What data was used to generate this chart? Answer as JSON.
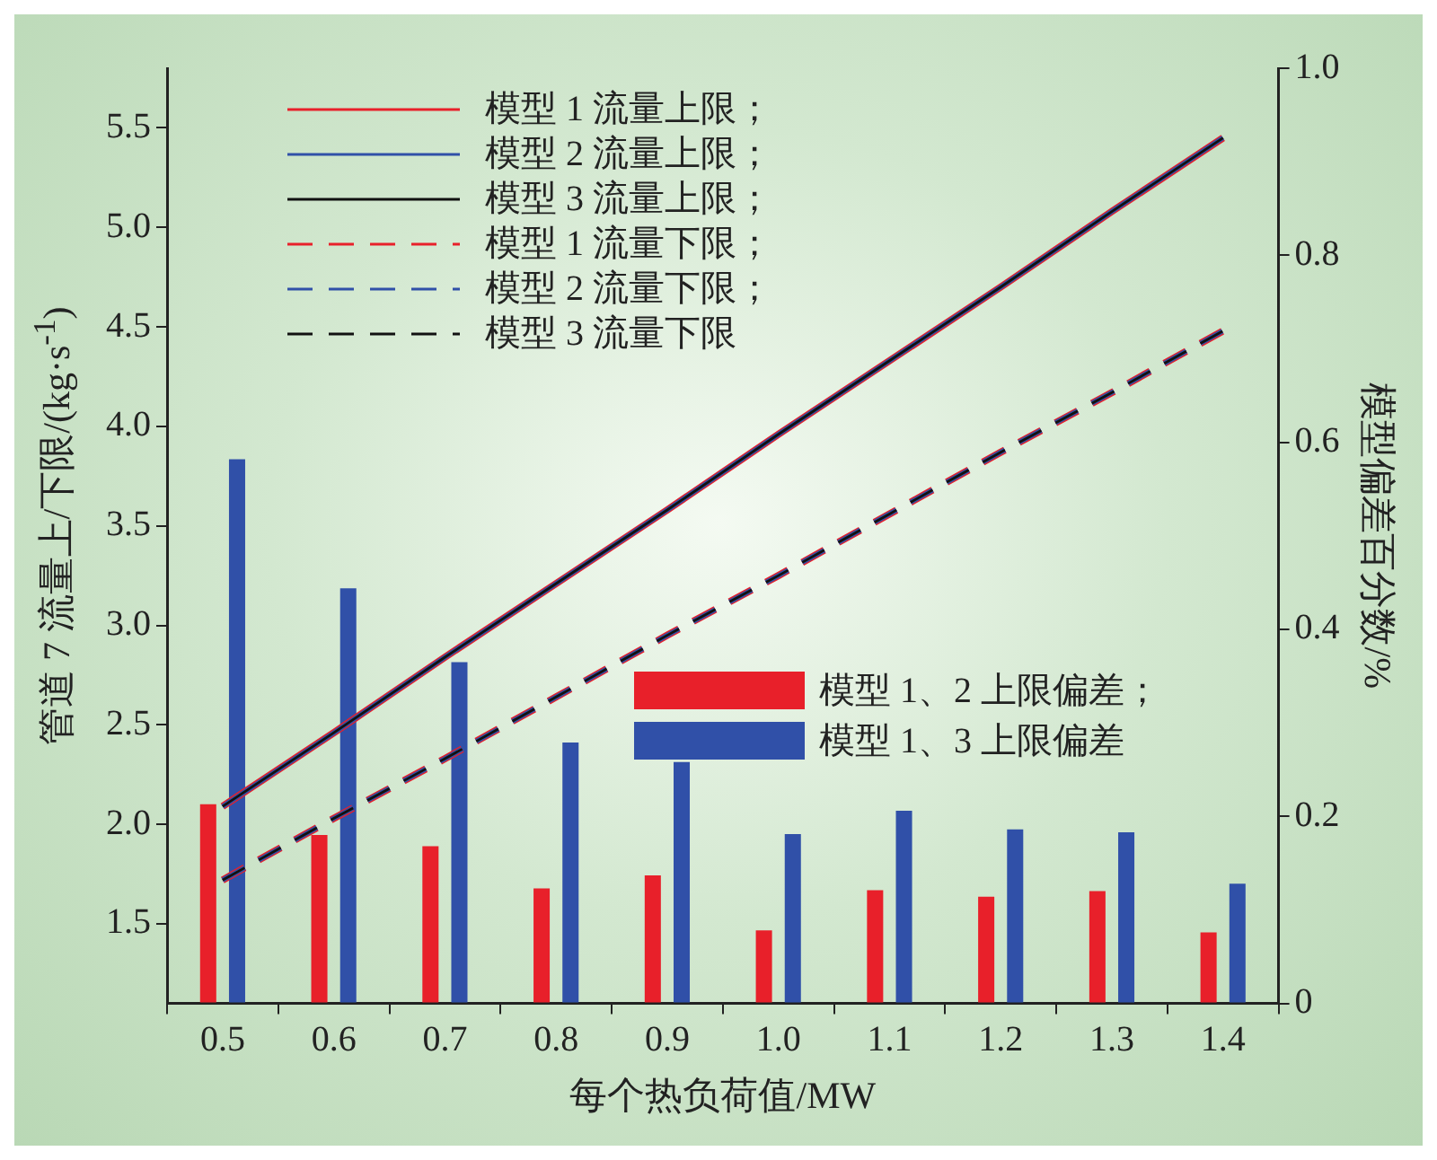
{
  "chart_data": {
    "type": "bar",
    "xlabel": "每个热负荷值/MW",
    "ylabel": "管道 7 流量上/下限/(kg·s$^{-1}$)",
    "y2label": "模型偏差百分数/%",
    "categories": [
      "0.5",
      "0.6",
      "0.7",
      "0.8",
      "0.9",
      "1.0",
      "1.1",
      "1.2",
      "1.3",
      "1.4"
    ],
    "series": [
      {
        "name": "模型 1 流量上限；",
        "type": "line",
        "color": "#e8202a",
        "line_style": "solid",
        "values": [
          2.09,
          2.46,
          2.84,
          3.21,
          3.58,
          3.96,
          4.33,
          4.7,
          5.08,
          5.45
        ]
      },
      {
        "name": "模型 2 流量上限；",
        "type": "line",
        "color": "#3050a8",
        "line_style": "solid",
        "values": [
          2.09,
          2.46,
          2.84,
          3.21,
          3.58,
          3.96,
          4.33,
          4.7,
          5.08,
          5.45
        ]
      },
      {
        "name": "模型 3 流量上限；",
        "type": "line",
        "color": "#111111",
        "line_style": "solid",
        "values": [
          2.09,
          2.46,
          2.84,
          3.21,
          3.58,
          3.96,
          4.33,
          4.7,
          5.08,
          5.45
        ]
      },
      {
        "name": "模型 1 流量下限；",
        "type": "line",
        "color": "#e8202a",
        "line_style": "dashed",
        "values": [
          1.72,
          2.03,
          2.33,
          2.64,
          2.95,
          3.25,
          3.56,
          3.87,
          4.17,
          4.48
        ]
      },
      {
        "name": "模型 2 流量下限；",
        "type": "line",
        "color": "#3050a8",
        "line_style": "dashed",
        "values": [
          1.72,
          2.03,
          2.33,
          2.64,
          2.95,
          3.25,
          3.56,
          3.87,
          4.17,
          4.48
        ]
      },
      {
        "name": "模型 3 流量下限",
        "type": "line",
        "color": "#111111",
        "line_style": "dashed",
        "values": [
          1.72,
          2.03,
          2.33,
          2.64,
          2.95,
          3.25,
          3.56,
          3.87,
          4.17,
          4.48
        ]
      },
      {
        "name": "模型 1、2 上限偏差；",
        "axis": "y2",
        "color": "#e8202a",
        "values": [
          0.213,
          0.18,
          0.168,
          0.123,
          0.137,
          0.078,
          0.121,
          0.114,
          0.12,
          0.076
        ]
      },
      {
        "name": "模型 1、3 上限偏差",
        "axis": "y2",
        "color": "#3050a8",
        "values": [
          0.582,
          0.444,
          0.365,
          0.279,
          0.258,
          0.181,
          0.206,
          0.186,
          0.183,
          0.128
        ]
      }
    ],
    "ylim": [
      1.1,
      5.8
    ],
    "yticks": [
      {
        "value": 1.5,
        "label": "1.5"
      },
      {
        "value": 2,
        "label": "2.0"
      },
      {
        "value": 2.5,
        "label": "2.5"
      },
      {
        "value": 3,
        "label": "3.0"
      },
      {
        "value": 3.5,
        "label": "3.5"
      },
      {
        "value": 4,
        "label": "4.0"
      },
      {
        "value": 4.5,
        "label": "4.5"
      },
      {
        "value": 5,
        "label": "5.0"
      },
      {
        "value": 5.5,
        "label": "5.5"
      }
    ],
    "y2lim": [
      0,
      1
    ],
    "y2ticks": [
      0,
      0.2,
      0.4,
      0.6,
      0.8,
      {
        "value": 1,
        "label": "1.0"
      }
    ],
    "grid": false,
    "legend": "top left"
  }
}
